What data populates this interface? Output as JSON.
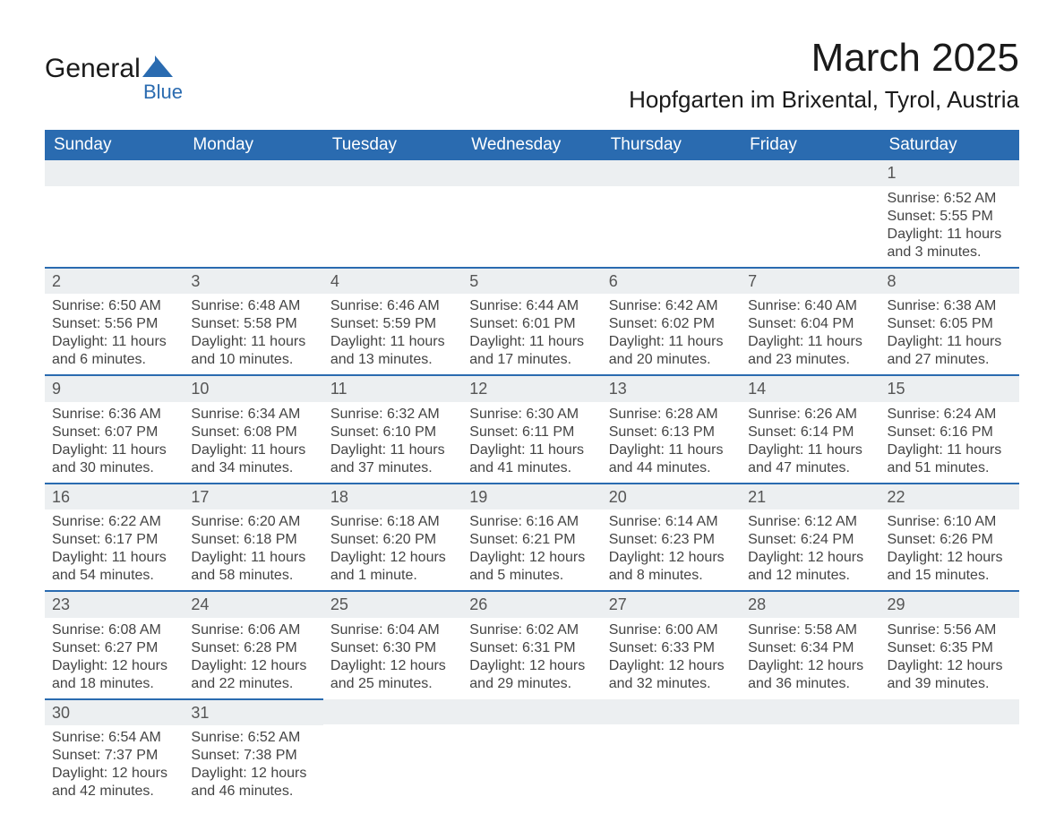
{
  "colors": {
    "header_bg": "#2a6bb0",
    "header_text": "#ffffff",
    "row_stripe": "#eceff1",
    "border": "#2a6bb0",
    "text": "#444444",
    "logo_blue": "#2a6bb0"
  },
  "logo": {
    "text_top": "General",
    "text_bottom": "Blue"
  },
  "title": {
    "main": "March 2025",
    "sub": "Hopfgarten im Brixental, Tyrol, Austria"
  },
  "weekdays": [
    "Sunday",
    "Monday",
    "Tuesday",
    "Wednesday",
    "Thursday",
    "Friday",
    "Saturday"
  ],
  "weeks": [
    [
      null,
      null,
      null,
      null,
      null,
      null,
      {
        "n": "1",
        "sunrise": "Sunrise: 6:52 AM",
        "sunset": "Sunset: 5:55 PM",
        "daylight": "Daylight: 11 hours and 3 minutes."
      }
    ],
    [
      {
        "n": "2",
        "sunrise": "Sunrise: 6:50 AM",
        "sunset": "Sunset: 5:56 PM",
        "daylight": "Daylight: 11 hours and 6 minutes."
      },
      {
        "n": "3",
        "sunrise": "Sunrise: 6:48 AM",
        "sunset": "Sunset: 5:58 PM",
        "daylight": "Daylight: 11 hours and 10 minutes."
      },
      {
        "n": "4",
        "sunrise": "Sunrise: 6:46 AM",
        "sunset": "Sunset: 5:59 PM",
        "daylight": "Daylight: 11 hours and 13 minutes."
      },
      {
        "n": "5",
        "sunrise": "Sunrise: 6:44 AM",
        "sunset": "Sunset: 6:01 PM",
        "daylight": "Daylight: 11 hours and 17 minutes."
      },
      {
        "n": "6",
        "sunrise": "Sunrise: 6:42 AM",
        "sunset": "Sunset: 6:02 PM",
        "daylight": "Daylight: 11 hours and 20 minutes."
      },
      {
        "n": "7",
        "sunrise": "Sunrise: 6:40 AM",
        "sunset": "Sunset: 6:04 PM",
        "daylight": "Daylight: 11 hours and 23 minutes."
      },
      {
        "n": "8",
        "sunrise": "Sunrise: 6:38 AM",
        "sunset": "Sunset: 6:05 PM",
        "daylight": "Daylight: 11 hours and 27 minutes."
      }
    ],
    [
      {
        "n": "9",
        "sunrise": "Sunrise: 6:36 AM",
        "sunset": "Sunset: 6:07 PM",
        "daylight": "Daylight: 11 hours and 30 minutes."
      },
      {
        "n": "10",
        "sunrise": "Sunrise: 6:34 AM",
        "sunset": "Sunset: 6:08 PM",
        "daylight": "Daylight: 11 hours and 34 minutes."
      },
      {
        "n": "11",
        "sunrise": "Sunrise: 6:32 AM",
        "sunset": "Sunset: 6:10 PM",
        "daylight": "Daylight: 11 hours and 37 minutes."
      },
      {
        "n": "12",
        "sunrise": "Sunrise: 6:30 AM",
        "sunset": "Sunset: 6:11 PM",
        "daylight": "Daylight: 11 hours and 41 minutes."
      },
      {
        "n": "13",
        "sunrise": "Sunrise: 6:28 AM",
        "sunset": "Sunset: 6:13 PM",
        "daylight": "Daylight: 11 hours and 44 minutes."
      },
      {
        "n": "14",
        "sunrise": "Sunrise: 6:26 AM",
        "sunset": "Sunset: 6:14 PM",
        "daylight": "Daylight: 11 hours and 47 minutes."
      },
      {
        "n": "15",
        "sunrise": "Sunrise: 6:24 AM",
        "sunset": "Sunset: 6:16 PM",
        "daylight": "Daylight: 11 hours and 51 minutes."
      }
    ],
    [
      {
        "n": "16",
        "sunrise": "Sunrise: 6:22 AM",
        "sunset": "Sunset: 6:17 PM",
        "daylight": "Daylight: 11 hours and 54 minutes."
      },
      {
        "n": "17",
        "sunrise": "Sunrise: 6:20 AM",
        "sunset": "Sunset: 6:18 PM",
        "daylight": "Daylight: 11 hours and 58 minutes."
      },
      {
        "n": "18",
        "sunrise": "Sunrise: 6:18 AM",
        "sunset": "Sunset: 6:20 PM",
        "daylight": "Daylight: 12 hours and 1 minute."
      },
      {
        "n": "19",
        "sunrise": "Sunrise: 6:16 AM",
        "sunset": "Sunset: 6:21 PM",
        "daylight": "Daylight: 12 hours and 5 minutes."
      },
      {
        "n": "20",
        "sunrise": "Sunrise: 6:14 AM",
        "sunset": "Sunset: 6:23 PM",
        "daylight": "Daylight: 12 hours and 8 minutes."
      },
      {
        "n": "21",
        "sunrise": "Sunrise: 6:12 AM",
        "sunset": "Sunset: 6:24 PM",
        "daylight": "Daylight: 12 hours and 12 minutes."
      },
      {
        "n": "22",
        "sunrise": "Sunrise: 6:10 AM",
        "sunset": "Sunset: 6:26 PM",
        "daylight": "Daylight: 12 hours and 15 minutes."
      }
    ],
    [
      {
        "n": "23",
        "sunrise": "Sunrise: 6:08 AM",
        "sunset": "Sunset: 6:27 PM",
        "daylight": "Daylight: 12 hours and 18 minutes."
      },
      {
        "n": "24",
        "sunrise": "Sunrise: 6:06 AM",
        "sunset": "Sunset: 6:28 PM",
        "daylight": "Daylight: 12 hours and 22 minutes."
      },
      {
        "n": "25",
        "sunrise": "Sunrise: 6:04 AM",
        "sunset": "Sunset: 6:30 PM",
        "daylight": "Daylight: 12 hours and 25 minutes."
      },
      {
        "n": "26",
        "sunrise": "Sunrise: 6:02 AM",
        "sunset": "Sunset: 6:31 PM",
        "daylight": "Daylight: 12 hours and 29 minutes."
      },
      {
        "n": "27",
        "sunrise": "Sunrise: 6:00 AM",
        "sunset": "Sunset: 6:33 PM",
        "daylight": "Daylight: 12 hours and 32 minutes."
      },
      {
        "n": "28",
        "sunrise": "Sunrise: 5:58 AM",
        "sunset": "Sunset: 6:34 PM",
        "daylight": "Daylight: 12 hours and 36 minutes."
      },
      {
        "n": "29",
        "sunrise": "Sunrise: 5:56 AM",
        "sunset": "Sunset: 6:35 PM",
        "daylight": "Daylight: 12 hours and 39 minutes."
      }
    ],
    [
      {
        "n": "30",
        "sunrise": "Sunrise: 6:54 AM",
        "sunset": "Sunset: 7:37 PM",
        "daylight": "Daylight: 12 hours and 42 minutes."
      },
      {
        "n": "31",
        "sunrise": "Sunrise: 6:52 AM",
        "sunset": "Sunset: 7:38 PM",
        "daylight": "Daylight: 12 hours and 46 minutes."
      },
      null,
      null,
      null,
      null,
      null
    ]
  ]
}
